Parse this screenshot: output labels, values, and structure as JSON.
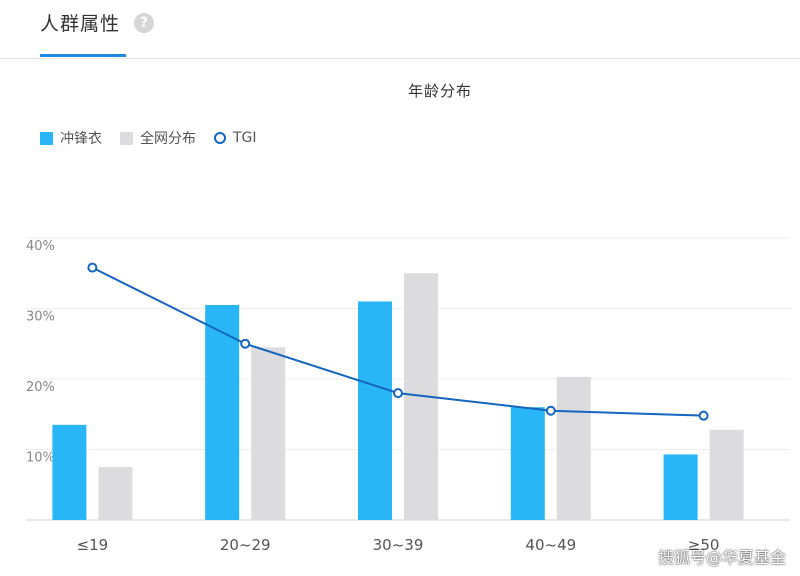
{
  "tab": {
    "title": "人群属性",
    "help_icon": "?"
  },
  "chart_data": {
    "type": "bar",
    "title": "年龄分布",
    "categories": [
      "≤19",
      "20~29",
      "30~39",
      "40~49",
      "≥50"
    ],
    "series": [
      {
        "name": "冲锋衣",
        "type": "bar",
        "values": [
          13.5,
          30.5,
          31.0,
          16.0,
          9.3
        ]
      },
      {
        "name": "全网分布",
        "type": "bar",
        "values": [
          7.5,
          24.5,
          35.0,
          20.3,
          12.8
        ]
      },
      {
        "name": "TGI",
        "type": "line",
        "values": [
          35.8,
          25.0,
          18.0,
          15.5,
          14.8
        ]
      }
    ],
    "ylim": [
      0,
      40
    ],
    "yticks": [
      "10%",
      "20%",
      "30%",
      "40%"
    ],
    "ytick_values": [
      10,
      20,
      30,
      40
    ],
    "grid": true,
    "legend_position": "top-left",
    "colors": {
      "bar1": "#29b6f6",
      "bar2": "#dcdcdf",
      "line": "#1565c0"
    }
  },
  "watermark": "搜狐号@华夏基金"
}
